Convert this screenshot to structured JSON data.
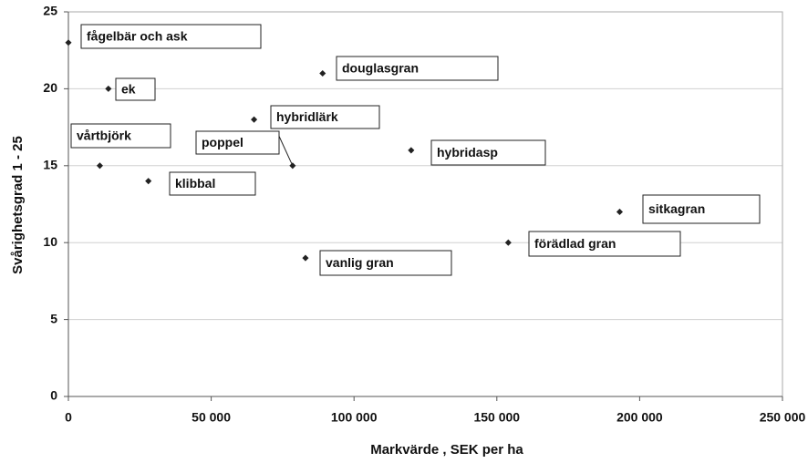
{
  "chart_data": {
    "type": "scatter",
    "xlabel": "Markvärde , SEK per ha",
    "ylabel": "Svårighetsgrad 1 - 25",
    "labels": [
      "fågelbär och ask",
      "ek",
      "vårtbjörk",
      "klibbal",
      "poppel",
      "hybridlärk",
      "douglasgran",
      "hybridasp",
      "vanlig gran",
      "förädlad gran",
      "sitkagran"
    ],
    "x": [
      0,
      14000,
      11000,
      28000,
      78500,
      65000,
      89000,
      120000,
      83000,
      154000,
      193000
    ],
    "values": [
      23,
      20,
      15,
      14,
      15,
      18,
      21,
      16,
      9,
      10,
      12
    ],
    "color": "#222222",
    "xlim": [
      0,
      250000
    ],
    "xticks": [
      0,
      {
        "value": 50000,
        "label": "50 000"
      },
      {
        "value": 100000,
        "label": "100 000"
      },
      {
        "value": 150000,
        "label": "150 000"
      },
      {
        "value": 200000,
        "label": "200 000"
      },
      {
        "value": 250000,
        "label": "250 000"
      }
    ],
    "ylim": [
      0,
      25
    ],
    "yticks": [
      0,
      5,
      10,
      15,
      20,
      25
    ],
    "grid": true
  }
}
